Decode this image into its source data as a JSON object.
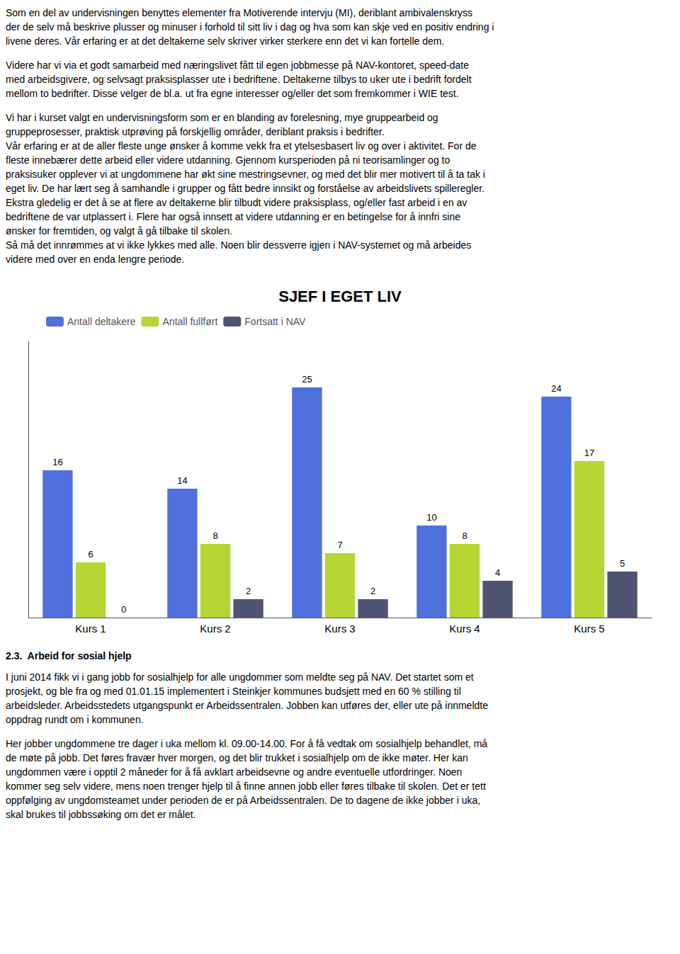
{
  "chart_data": {
    "type": "bar",
    "title": "SJEF I EGET LIV",
    "categories": [
      "Kurs 1",
      "Kurs 2",
      "Kurs 3",
      "Kurs 4",
      "Kurs 5"
    ],
    "series": [
      {
        "name": "Antall deltakere",
        "values": [
          16,
          14,
          25,
          10,
          24
        ]
      },
      {
        "name": "Antall fullført",
        "values": [
          6,
          8,
          7,
          8,
          17
        ]
      },
      {
        "name": "Fortsatt i NAV",
        "values": [
          0,
          2,
          2,
          4,
          5
        ]
      }
    ],
    "ylim": [
      0,
      30
    ],
    "grid": false,
    "legend": "upper left",
    "data_labels": true,
    "tick_labels": "x",
    "annotations": [
      "Som en del av undervisningen benyttes elementer fra Motiverende intervju (MI), deriblant ambivalenskryss\nder de selv må beskrive plusser og minuser i forhold til sitt liv i dag og hva som kan skje ved en positiv endring i\nlivene deres. Vår erfaring er at det deltakerne selv skriver virker sterkere enn det vi kan fortelle dem.",
      "Videre har vi via et godt samarbeid med næringslivet fått til egen jobbmesse på NAV-kontoret, speed-date\nmed arbeidsgivere, og selvsagt praksisplasser ute i bedriftene. Deltakerne tilbys to uker ute i bedrift fordelt\nmellom to bedrifter. Disse velger de bl.a. ut fra egne interesser og/eller det som fremkommer i WIE test.",
      "Vi har i kurset valgt en undervisningsform som er en blanding av forelesning, mye gruppearbeid og\ngruppeprosesser, praktisk utprøving på forskjellig områder, deriblant praksis i bedrifter.\nVår erfaring er at de aller fleste unge ønsker å komme vekk fra et ytelsesbasert liv og over i aktivitet. For de\nfleste innebærer dette arbeid eller videre utdanning. Gjennom kursperioden på ni teorisamlinger og to\npraksisuker opplever vi at ungdommene har økt sine mestringsevner, og med det blir mer motivert til å ta tak i\neget liv. De har lært seg å samhandle i grupper og fått bedre innsikt og forståelse av arbeidslivets spilleregler.\nEkstra gledelig er det å se at flere av deltakerne blir tilbudt videre praksisplass, og/eller fast arbeid i en av\nbedriftene de var utplassert i. Flere har også innsett at videre utdanning er en betingelse for å innfri sine\nønsker for fremtiden, og valgt å gå tilbake til skolen.\nSå må det innrømmes at vi ikke lykkes med alle. Noen blir dessverre igjen i NAV-systemet og må arbeides\nvidere med over en enda lengre periode.",
      "2.3.  Arbeid for sosial hjelp",
      "I juni 2014 fikk vi i gang jobb for sosialhjelp for alle ungdommer som meldte seg på NAV. Det startet som et\nprosjekt, og ble fra og med 01.01.15 implementert i Steinkjer kommunes budsjett med en 60 % stilling til\narbeidsleder. Arbeidsstedets utgangspunkt er Arbeidssentralen. Jobben kan utføres der, eller ute på innmeldte\noppdrag rundt om i kommunen.",
      "Her jobber ungdommene tre dager i uka mellom kl. 09.00-14.00. For å få vedtak om sosialhjelp behandlet, må\nde møte på jobb. Det føres fravær hver morgen, og det blir trukket i sosialhjelp om de ikke møter. Her kan\nungdommen være i opptil 2 måneder for å få avklart arbeidsevne og andre eventuelle utfordringer. Noen\nkommer seg selv videre, mens noen trenger hjelp til å finne annen jobb eller føres tilbake til skolen. Det er tett\noppfølging av ungdomsteamet under perioden de er på Arbeidssentralen. De to dagene de ikke jobber i uka,\nskal brukes til jobbssøking om det er målet."
    ]
  }
}
